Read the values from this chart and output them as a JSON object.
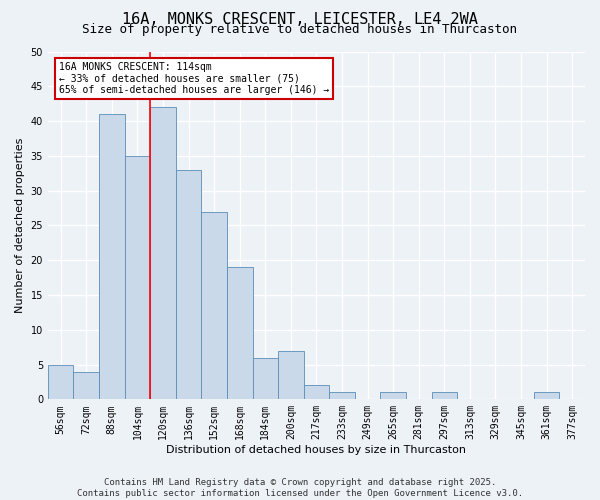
{
  "title": "16A, MONKS CRESCENT, LEICESTER, LE4 2WA",
  "subtitle": "Size of property relative to detached houses in Thurcaston",
  "xlabel": "Distribution of detached houses by size in Thurcaston",
  "ylabel": "Number of detached properties",
  "bin_labels": [
    "56sqm",
    "72sqm",
    "88sqm",
    "104sqm",
    "120sqm",
    "136sqm",
    "152sqm",
    "168sqm",
    "184sqm",
    "200sqm",
    "217sqm",
    "233sqm",
    "249sqm",
    "265sqm",
    "281sqm",
    "297sqm",
    "313sqm",
    "329sqm",
    "345sqm",
    "361sqm",
    "377sqm"
  ],
  "values": [
    5,
    4,
    41,
    35,
    42,
    33,
    27,
    19,
    6,
    7,
    2,
    1,
    0,
    1,
    0,
    1,
    0,
    0,
    0,
    1,
    0
  ],
  "bar_color": "#c9d9ea",
  "bar_edge_color": "#5b8db8",
  "red_line_x": 3.5,
  "annotation_text": "16A MONKS CRESCENT: 114sqm\n← 33% of detached houses are smaller (75)\n65% of semi-detached houses are larger (146) →",
  "annotation_box_color": "#ffffff",
  "annotation_box_edge": "#cc0000",
  "ylim": [
    0,
    50
  ],
  "yticks": [
    0,
    5,
    10,
    15,
    20,
    25,
    30,
    35,
    40,
    45,
    50
  ],
  "footer": "Contains HM Land Registry data © Crown copyright and database right 2025.\nContains public sector information licensed under the Open Government Licence v3.0.",
  "background_color": "#edf2f7",
  "plot_background": "#edf2f7",
  "grid_color": "#ffffff",
  "title_fontsize": 11,
  "subtitle_fontsize": 9,
  "axis_label_fontsize": 8,
  "tick_fontsize": 7,
  "footer_fontsize": 6.5,
  "annot_fontsize": 7
}
